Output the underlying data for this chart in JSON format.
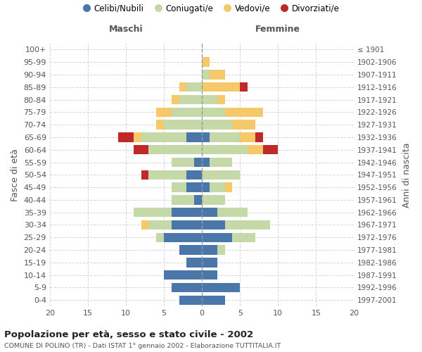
{
  "age_groups": [
    "0-4",
    "5-9",
    "10-14",
    "15-19",
    "20-24",
    "25-29",
    "30-34",
    "35-39",
    "40-44",
    "45-49",
    "50-54",
    "55-59",
    "60-64",
    "65-69",
    "70-74",
    "75-79",
    "80-84",
    "85-89",
    "90-94",
    "95-99",
    "100+"
  ],
  "birth_years": [
    "1997-2001",
    "1992-1996",
    "1987-1991",
    "1982-1986",
    "1977-1981",
    "1972-1976",
    "1967-1971",
    "1962-1966",
    "1957-1961",
    "1952-1956",
    "1947-1951",
    "1942-1946",
    "1937-1941",
    "1932-1936",
    "1927-1931",
    "1922-1926",
    "1917-1921",
    "1912-1916",
    "1907-1911",
    "1902-1906",
    "≤ 1901"
  ],
  "males": {
    "celibi": [
      3,
      4,
      5,
      2,
      3,
      5,
      4,
      4,
      1,
      2,
      2,
      1,
      0,
      2,
      0,
      0,
      0,
      0,
      0,
      0,
      0
    ],
    "coniugati": [
      0,
      0,
      0,
      0,
      0,
      1,
      3,
      5,
      3,
      2,
      5,
      3,
      7,
      6,
      5,
      4,
      3,
      2,
      0,
      0,
      0
    ],
    "vedovi": [
      0,
      0,
      0,
      0,
      0,
      0,
      1,
      0,
      0,
      0,
      0,
      0,
      0,
      1,
      1,
      2,
      1,
      1,
      0,
      0,
      0
    ],
    "divorziati": [
      0,
      0,
      0,
      0,
      0,
      0,
      0,
      0,
      0,
      0,
      1,
      0,
      2,
      2,
      0,
      0,
      0,
      0,
      0,
      0,
      0
    ]
  },
  "females": {
    "nubili": [
      3,
      5,
      2,
      2,
      2,
      4,
      3,
      2,
      0,
      1,
      0,
      1,
      0,
      1,
      0,
      0,
      0,
      0,
      0,
      0,
      0
    ],
    "coniugate": [
      0,
      0,
      0,
      0,
      1,
      3,
      6,
      4,
      3,
      2,
      5,
      3,
      6,
      4,
      4,
      3,
      2,
      0,
      1,
      0,
      0
    ],
    "vedove": [
      0,
      0,
      0,
      0,
      0,
      0,
      0,
      0,
      0,
      1,
      0,
      0,
      2,
      2,
      3,
      5,
      1,
      5,
      2,
      1,
      0
    ],
    "divorziate": [
      0,
      0,
      0,
      0,
      0,
      0,
      0,
      0,
      0,
      0,
      0,
      0,
      2,
      1,
      0,
      0,
      0,
      1,
      0,
      0,
      0
    ]
  },
  "colors": {
    "celibi_nubili": "#4a77aa",
    "coniugati": "#c5d9a8",
    "vedovi": "#f5c96a",
    "divorziati": "#c0292a"
  },
  "xlim": [
    -20,
    20
  ],
  "xticks": [
    -20,
    -15,
    -10,
    -5,
    0,
    5,
    10,
    15,
    20
  ],
  "xticklabels": [
    "20",
    "15",
    "10",
    "5",
    "0",
    "5",
    "10",
    "15",
    "20"
  ],
  "title": "Popolazione per età, sesso e stato civile - 2002",
  "subtitle": "COMUNE DI POLINO (TR) - Dati ISTAT 1° gennaio 2002 - Elaborazione TUTTITALIA.IT",
  "ylabel_left": "Fasce di età",
  "header_maschi": "Maschi",
  "header_femmine": "Femmine",
  "ylabel_right": "Anni di nascita",
  "legend_labels": [
    "Celibi/Nubili",
    "Coniugati/e",
    "Vedovi/e",
    "Divorziati/e"
  ],
  "bg_color": "#ffffff",
  "grid_color": "#cccccc"
}
